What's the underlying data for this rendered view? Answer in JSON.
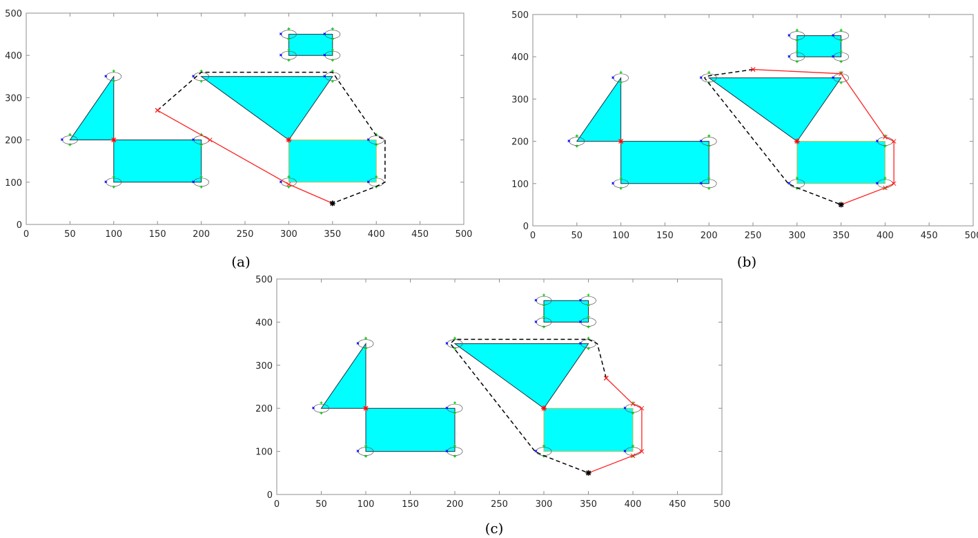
{
  "chart_data": [
    {
      "panel": "a",
      "caption": "(a)",
      "type": "scatter",
      "xlim": [
        0,
        500
      ],
      "ylim": [
        0,
        500
      ],
      "xticks": [
        0,
        50,
        100,
        150,
        200,
        250,
        300,
        350,
        400,
        450,
        500
      ],
      "yticks": [
        0,
        100,
        200,
        300,
        400,
        500
      ],
      "grid": false,
      "obstacles": [
        {
          "shape": "triangle",
          "points": [
            [
              50,
              200
            ],
            [
              100,
              200
            ],
            [
              100,
              350
            ]
          ]
        },
        {
          "shape": "rectangle",
          "points": [
            [
              100,
              100
            ],
            [
              200,
              100
            ],
            [
              200,
              200
            ],
            [
              100,
              200
            ]
          ]
        },
        {
          "shape": "triangle",
          "points": [
            [
              200,
              350
            ],
            [
              350,
              350
            ],
            [
              300,
              200
            ]
          ]
        },
        {
          "shape": "rectangle",
          "points": [
            [
              300,
              100
            ],
            [
              400,
              100
            ],
            [
              400,
              200
            ],
            [
              300,
              200
            ]
          ]
        },
        {
          "shape": "rectangle",
          "points": [
            [
              300,
              400
            ],
            [
              350,
              400
            ],
            [
              350,
              450
            ],
            [
              300,
              450
            ]
          ]
        }
      ],
      "vertex_markers": [
        [
          50,
          200
        ],
        [
          100,
          350
        ],
        [
          100,
          100
        ],
        [
          200,
          100
        ],
        [
          200,
          200
        ],
        [
          200,
          350
        ],
        [
          350,
          350
        ],
        [
          400,
          200
        ],
        [
          400,
          100
        ],
        [
          300,
          100
        ],
        [
          300,
          450
        ],
        [
          350,
          450
        ],
        [
          300,
          400
        ],
        [
          350,
          400
        ]
      ],
      "red_markers": [
        [
          100,
          200
        ],
        [
          300,
          200
        ]
      ],
      "paths": [
        {
          "style": "red-solid",
          "points": [
            [
              150,
              270
            ],
            [
              210,
              200
            ],
            [
              300,
              95
            ],
            [
              350,
              50
            ]
          ]
        },
        {
          "style": "black-dashed",
          "points": [
            [
              150,
              270
            ],
            [
              200,
              360
            ],
            [
              350,
              360
            ],
            [
              400,
              210
            ],
            [
              410,
              200
            ],
            [
              410,
              100
            ],
            [
              400,
              90
            ],
            [
              350,
              50
            ]
          ]
        }
      ],
      "start": [
        150,
        270
      ],
      "goal": [
        350,
        50
      ]
    },
    {
      "panel": "b",
      "caption": "(b)",
      "type": "scatter",
      "xlim": [
        0,
        500
      ],
      "ylim": [
        0,
        500
      ],
      "xticks": [
        0,
        50,
        100,
        150,
        200,
        250,
        300,
        350,
        400,
        450,
        500
      ],
      "yticks": [
        0,
        100,
        200,
        300,
        400,
        500
      ],
      "grid": false,
      "obstacles": [
        {
          "shape": "triangle",
          "points": [
            [
              50,
              200
            ],
            [
              100,
              200
            ],
            [
              100,
              350
            ]
          ]
        },
        {
          "shape": "rectangle",
          "points": [
            [
              100,
              100
            ],
            [
              200,
              100
            ],
            [
              200,
              200
            ],
            [
              100,
              200
            ]
          ]
        },
        {
          "shape": "triangle",
          "points": [
            [
              200,
              350
            ],
            [
              350,
              350
            ],
            [
              300,
              200
            ]
          ]
        },
        {
          "shape": "rectangle",
          "points": [
            [
              300,
              100
            ],
            [
              400,
              100
            ],
            [
              400,
              200
            ],
            [
              300,
              200
            ]
          ]
        },
        {
          "shape": "rectangle",
          "points": [
            [
              300,
              400
            ],
            [
              350,
              400
            ],
            [
              350,
              450
            ],
            [
              300,
              450
            ]
          ]
        }
      ],
      "vertex_markers": [
        [
          50,
          200
        ],
        [
          100,
          350
        ],
        [
          100,
          100
        ],
        [
          200,
          100
        ],
        [
          200,
          200
        ],
        [
          200,
          350
        ],
        [
          350,
          350
        ],
        [
          400,
          200
        ],
        [
          400,
          100
        ],
        [
          300,
          100
        ],
        [
          300,
          450
        ],
        [
          350,
          450
        ],
        [
          300,
          400
        ],
        [
          350,
          400
        ]
      ],
      "red_markers": [
        [
          100,
          200
        ],
        [
          300,
          200
        ]
      ],
      "paths": [
        {
          "style": "red-solid",
          "points": [
            [
              250,
              370
            ],
            [
              350,
              360
            ],
            [
              400,
              210
            ],
            [
              410,
              200
            ],
            [
              410,
              100
            ],
            [
              400,
              90
            ],
            [
              350,
              50
            ]
          ]
        },
        {
          "style": "black-dashed",
          "points": [
            [
              250,
              370
            ],
            [
              200,
              355
            ],
            [
              195,
              350
            ],
            [
              290,
              100
            ],
            [
              300,
              90
            ],
            [
              350,
              50
            ]
          ]
        }
      ],
      "start": [
        250,
        370
      ],
      "goal": [
        350,
        50
      ]
    },
    {
      "panel": "c",
      "caption": "(c)",
      "type": "scatter",
      "xlim": [
        0,
        500
      ],
      "ylim": [
        0,
        500
      ],
      "xticks": [
        0,
        50,
        100,
        150,
        200,
        250,
        300,
        350,
        400,
        450,
        500
      ],
      "yticks": [
        0,
        100,
        200,
        300,
        400,
        500
      ],
      "grid": false,
      "obstacles": [
        {
          "shape": "triangle",
          "points": [
            [
              50,
              200
            ],
            [
              100,
              200
            ],
            [
              100,
              350
            ]
          ]
        },
        {
          "shape": "rectangle",
          "points": [
            [
              100,
              100
            ],
            [
              200,
              100
            ],
            [
              200,
              200
            ],
            [
              100,
              200
            ]
          ]
        },
        {
          "shape": "triangle",
          "points": [
            [
              200,
              350
            ],
            [
              350,
              350
            ],
            [
              300,
              200
            ]
          ]
        },
        {
          "shape": "rectangle",
          "points": [
            [
              300,
              100
            ],
            [
              400,
              100
            ],
            [
              400,
              200
            ],
            [
              300,
              200
            ]
          ]
        },
        {
          "shape": "rectangle",
          "points": [
            [
              300,
              400
            ],
            [
              350,
              400
            ],
            [
              350,
              450
            ],
            [
              300,
              450
            ]
          ]
        }
      ],
      "vertex_markers": [
        [
          50,
          200
        ],
        [
          100,
          350
        ],
        [
          100,
          100
        ],
        [
          200,
          100
        ],
        [
          200,
          200
        ],
        [
          200,
          350
        ],
        [
          350,
          350
        ],
        [
          400,
          200
        ],
        [
          400,
          100
        ],
        [
          300,
          100
        ],
        [
          300,
          450
        ],
        [
          350,
          450
        ],
        [
          300,
          400
        ],
        [
          350,
          400
        ]
      ],
      "red_markers": [
        [
          100,
          200
        ],
        [
          300,
          200
        ]
      ],
      "paths": [
        {
          "style": "red-solid",
          "points": [
            [
              370,
              270
            ],
            [
              400,
              210
            ],
            [
              410,
              200
            ],
            [
              410,
              100
            ],
            [
              400,
              90
            ],
            [
              350,
              50
            ]
          ]
        },
        {
          "style": "black-dashed",
          "points": [
            [
              370,
              270
            ],
            [
              360,
              350
            ],
            [
              350,
              360
            ],
            [
              200,
              360
            ],
            [
              195,
              350
            ],
            [
              290,
              100
            ],
            [
              300,
              90
            ],
            [
              350,
              50
            ]
          ]
        }
      ],
      "start": [
        370,
        270
      ],
      "goal": [
        350,
        50
      ]
    }
  ],
  "colors": {
    "obstacle_fill": "#00ffff",
    "obstacle_edge": "#1f2d3d",
    "obstacle_edge_alt": "#d4b24a",
    "red_path": "#ff2020",
    "black_path": "#000000",
    "marker_green": "#00cc00",
    "marker_blue": "#0000ff",
    "marker_red": "#ff0000",
    "goal_marker": "#000000",
    "axis_frame": "#8c8c8c",
    "tick_label": "#262626"
  }
}
